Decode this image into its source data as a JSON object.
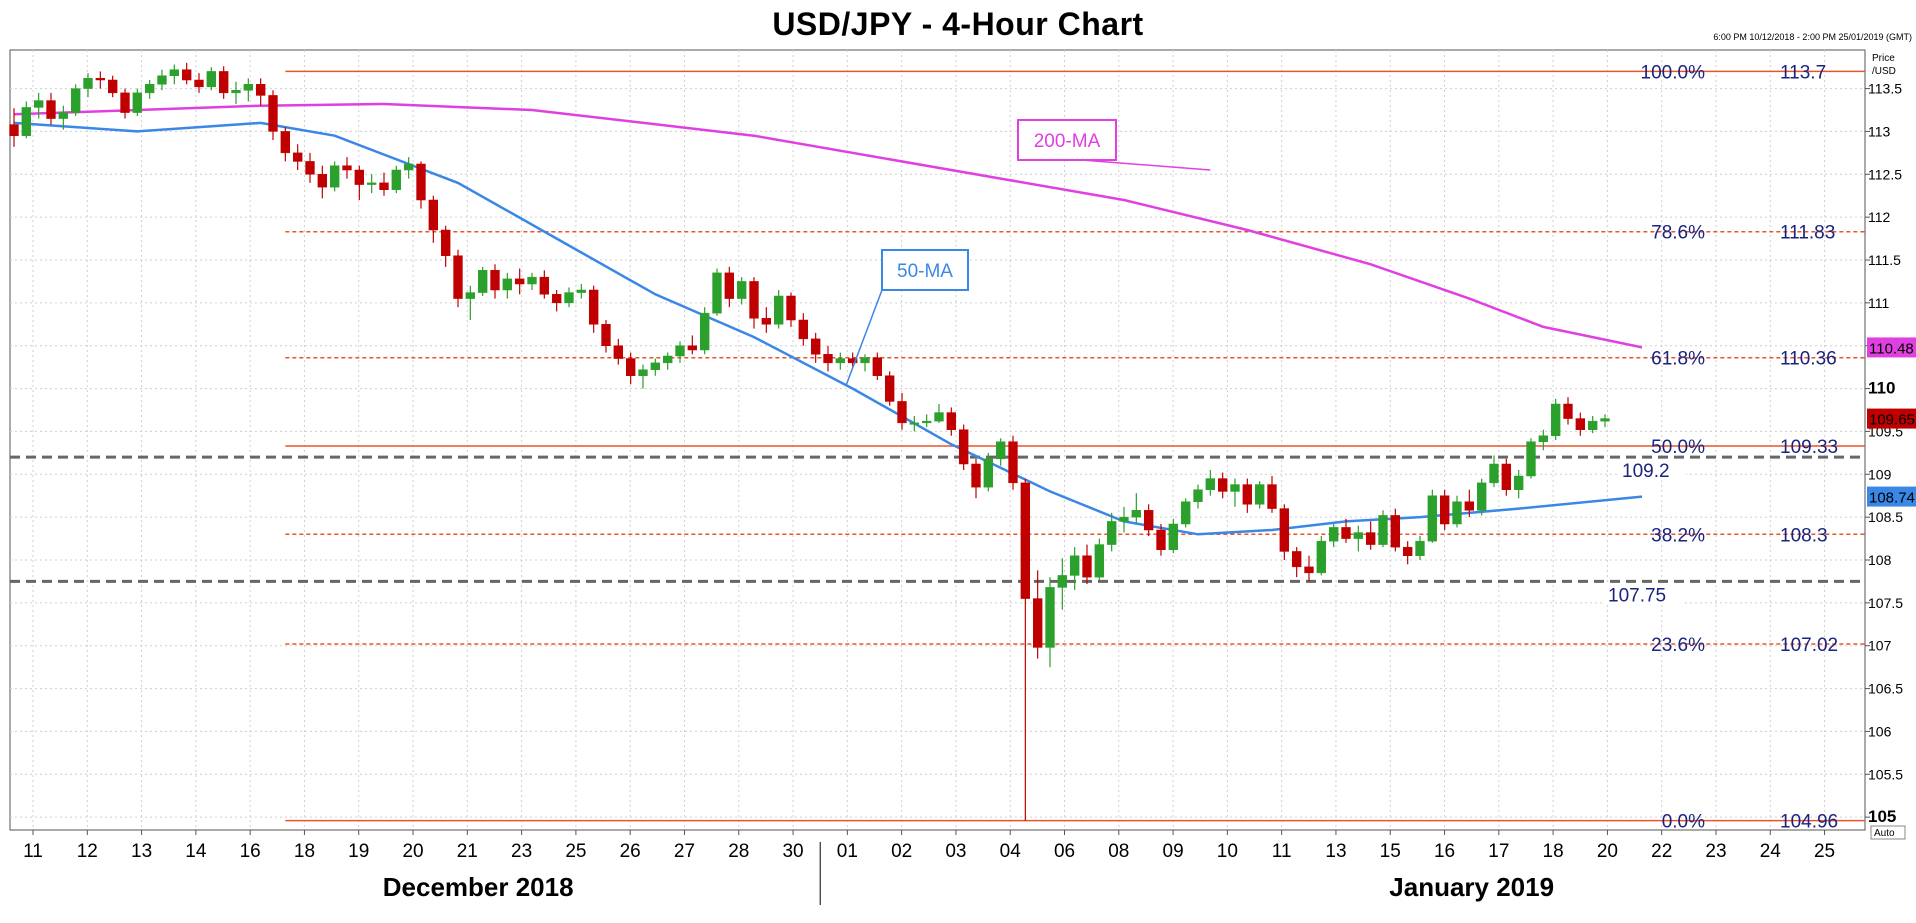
{
  "page": {
    "title": "USD/JPY - 4-Hour Chart",
    "range_note": "6:00 PM 10/12/2018 - 2:00 PM 25/01/2019 (GMT)",
    "price_axis_title": [
      "Price",
      "/USD"
    ],
    "auto_label": "Auto",
    "month_labels": [
      "December 2018",
      "January 2019"
    ]
  },
  "chart_data": {
    "type": "candlestick",
    "title": "USD/JPY - 4-Hour Chart",
    "ylim": [
      104.85,
      113.95
    ],
    "y_ticks": [
      105,
      105.5,
      106,
      106.5,
      107,
      107.5,
      108,
      108.5,
      109,
      109.5,
      110,
      110.5,
      111,
      111.5,
      112,
      112.5,
      113,
      113.5
    ],
    "y_tick_labels": [
      "105",
      "105.5",
      "106",
      "106.5",
      "107",
      "107.5",
      "108",
      "108.5",
      "109",
      "109.5",
      "110",
      "110.5",
      "111",
      "111.5",
      "112",
      "112.5",
      "113",
      "113.5"
    ],
    "y_bold_ticks": [
      "105",
      "110"
    ],
    "x_tick_labels": [
      "11",
      "12",
      "13",
      "14",
      "16",
      "18",
      "19",
      "20",
      "21",
      "23",
      "25",
      "26",
      "27",
      "28",
      "30",
      "01",
      "02",
      "03",
      "04",
      "06",
      "08",
      "09",
      "10",
      "11",
      "13",
      "15",
      "16",
      "17",
      "18",
      "20",
      "22",
      "23",
      "24",
      "25"
    ],
    "month_labels": [
      "December 2018",
      "January 2019"
    ],
    "grid": true,
    "colors": {
      "up": "#2ca02c",
      "down": "#c00000",
      "ma200": "#e040e0",
      "ma50": "#3a87e6",
      "fib": "#e8552a",
      "level": "#666666",
      "label": "#1a237e"
    },
    "fibonacci": [
      {
        "label": "100.0%",
        "value": "113.7",
        "y": 113.7
      },
      {
        "label": "78.6%",
        "value": "111.83",
        "y": 111.83
      },
      {
        "label": "61.8%",
        "value": "110.36",
        "y": 110.36
      },
      {
        "label": "50.0%",
        "value": "109.33",
        "y": 109.33
      },
      {
        "label": "38.2%",
        "value": "108.3",
        "y": 108.3
      },
      {
        "label": "23.6%",
        "value": "107.02",
        "y": 107.02
      },
      {
        "label": "0.0%",
        "value": "104.96",
        "y": 104.96
      }
    ],
    "levels": [
      {
        "label": "109.2",
        "y": 109.2
      },
      {
        "label": "107.75",
        "y": 107.75
      }
    ],
    "annotations": [
      {
        "text": "200-MA",
        "series": "ma200"
      },
      {
        "text": "50-MA",
        "series": "ma50"
      }
    ],
    "badges": [
      {
        "text": "110.48",
        "y": 110.48,
        "color": "#e040e0"
      },
      {
        "text": "109.65",
        "y": 109.65,
        "color": "#c00000"
      },
      {
        "text": "108.74",
        "y": 108.74,
        "color": "#3a87e6"
      }
    ],
    "ma200": [
      [
        0,
        113.2
      ],
      [
        20,
        113.3
      ],
      [
        30,
        113.32
      ],
      [
        42,
        113.25
      ],
      [
        60,
        112.95
      ],
      [
        80,
        112.45
      ],
      [
        90,
        112.2
      ],
      [
        100,
        111.85
      ],
      [
        110,
        111.45
      ],
      [
        118,
        111.05
      ],
      [
        124,
        110.72
      ],
      [
        132,
        110.48
      ]
    ],
    "ma50": [
      [
        0,
        113.1
      ],
      [
        10,
        113.0
      ],
      [
        20,
        113.1
      ],
      [
        26,
        112.95
      ],
      [
        36,
        112.4
      ],
      [
        44,
        111.75
      ],
      [
        52,
        111.1
      ],
      [
        60,
        110.6
      ],
      [
        68,
        110.0
      ],
      [
        76,
        109.35
      ],
      [
        84,
        108.8
      ],
      [
        90,
        108.45
      ],
      [
        96,
        108.3
      ],
      [
        102,
        108.35
      ],
      [
        108,
        108.45
      ],
      [
        114,
        108.5
      ],
      [
        122,
        108.6
      ],
      [
        132,
        108.74
      ]
    ],
    "candles": [
      [
        113.08,
        113.27,
        112.82,
        112.95
      ],
      [
        112.95,
        113.35,
        112.92,
        113.28
      ],
      [
        113.28,
        113.45,
        113.15,
        113.36
      ],
      [
        113.36,
        113.45,
        113.08,
        113.15
      ],
      [
        113.15,
        113.3,
        113.02,
        113.22
      ],
      [
        113.22,
        113.55,
        113.18,
        113.5
      ],
      [
        113.5,
        113.68,
        113.4,
        113.62
      ],
      [
        113.62,
        113.7,
        113.5,
        113.6
      ],
      [
        113.6,
        113.65,
        113.4,
        113.45
      ],
      [
        113.45,
        113.5,
        113.15,
        113.22
      ],
      [
        113.22,
        113.5,
        113.18,
        113.45
      ],
      [
        113.45,
        113.6,
        113.38,
        113.55
      ],
      [
        113.55,
        113.72,
        113.48,
        113.65
      ],
      [
        113.65,
        113.78,
        113.55,
        113.72
      ],
      [
        113.72,
        113.8,
        113.55,
        113.6
      ],
      [
        113.6,
        113.68,
        113.45,
        113.52
      ],
      [
        113.52,
        113.75,
        113.48,
        113.7
      ],
      [
        113.7,
        113.76,
        113.38,
        113.45
      ],
      [
        113.45,
        113.58,
        113.32,
        113.48
      ],
      [
        113.48,
        113.62,
        113.35,
        113.55
      ],
      [
        113.55,
        113.62,
        113.3,
        113.42
      ],
      [
        113.42,
        113.48,
        112.9,
        113.0
      ],
      [
        113.0,
        113.05,
        112.65,
        112.75
      ],
      [
        112.75,
        112.85,
        112.55,
        112.65
      ],
      [
        112.65,
        112.75,
        112.4,
        112.5
      ],
      [
        112.5,
        112.6,
        112.22,
        112.35
      ],
      [
        112.35,
        112.65,
        112.3,
        112.6
      ],
      [
        112.6,
        112.7,
        112.45,
        112.55
      ],
      [
        112.55,
        112.6,
        112.2,
        112.38
      ],
      [
        112.38,
        112.5,
        112.28,
        112.4
      ],
      [
        112.4,
        112.52,
        112.25,
        112.32
      ],
      [
        112.32,
        112.6,
        112.28,
        112.55
      ],
      [
        112.55,
        112.7,
        112.45,
        112.62
      ],
      [
        112.62,
        112.65,
        112.1,
        112.2
      ],
      [
        112.2,
        112.25,
        111.7,
        111.85
      ],
      [
        111.85,
        111.9,
        111.42,
        111.55
      ],
      [
        111.55,
        111.62,
        110.95,
        111.05
      ],
      [
        111.05,
        111.2,
        110.8,
        111.12
      ],
      [
        111.12,
        111.42,
        111.08,
        111.38
      ],
      [
        111.38,
        111.45,
        111.05,
        111.15
      ],
      [
        111.15,
        111.35,
        111.05,
        111.28
      ],
      [
        111.28,
        111.4,
        111.1,
        111.22
      ],
      [
        111.22,
        111.35,
        111.15,
        111.3
      ],
      [
        111.3,
        111.38,
        111.05,
        111.1
      ],
      [
        111.1,
        111.15,
        110.9,
        111.0
      ],
      [
        111.0,
        111.18,
        110.95,
        111.12
      ],
      [
        111.12,
        111.22,
        111.05,
        111.15
      ],
      [
        111.15,
        111.2,
        110.65,
        110.75
      ],
      [
        110.75,
        110.8,
        110.42,
        110.5
      ],
      [
        110.5,
        110.58,
        110.28,
        110.35
      ],
      [
        110.35,
        110.42,
        110.05,
        110.15
      ],
      [
        110.15,
        110.28,
        110.0,
        110.22
      ],
      [
        110.22,
        110.35,
        110.15,
        110.3
      ],
      [
        110.3,
        110.42,
        110.22,
        110.38
      ],
      [
        110.38,
        110.55,
        110.3,
        110.5
      ],
      [
        110.5,
        110.62,
        110.4,
        110.45
      ],
      [
        110.45,
        110.95,
        110.4,
        110.88
      ],
      [
        110.88,
        111.4,
        110.85,
        111.35
      ],
      [
        111.35,
        111.42,
        110.95,
        111.05
      ],
      [
        111.05,
        111.3,
        110.98,
        111.25
      ],
      [
        111.25,
        111.3,
        110.7,
        110.82
      ],
      [
        110.82,
        110.95,
        110.65,
        110.75
      ],
      [
        110.75,
        111.15,
        110.7,
        111.08
      ],
      [
        111.08,
        111.12,
        110.72,
        110.8
      ],
      [
        110.8,
        110.88,
        110.5,
        110.58
      ],
      [
        110.58,
        110.65,
        110.3,
        110.4
      ],
      [
        110.4,
        110.5,
        110.2,
        110.3
      ],
      [
        110.3,
        110.42,
        110.22,
        110.35
      ],
      [
        110.35,
        110.42,
        110.25,
        110.3
      ],
      [
        110.3,
        110.4,
        110.2,
        110.36
      ],
      [
        110.36,
        110.42,
        110.1,
        110.15
      ],
      [
        110.15,
        110.2,
        109.8,
        109.85
      ],
      [
        109.85,
        109.95,
        109.52,
        109.6
      ],
      [
        109.6,
        109.68,
        109.5,
        109.6
      ],
      [
        109.6,
        109.7,
        109.55,
        109.62
      ],
      [
        109.62,
        109.82,
        109.6,
        109.72
      ],
      [
        109.72,
        109.78,
        109.45,
        109.52
      ],
      [
        109.52,
        109.58,
        109.05,
        109.12
      ],
      [
        109.12,
        109.18,
        108.72,
        108.85
      ],
      [
        108.85,
        109.25,
        108.8,
        109.18
      ],
      [
        109.18,
        109.42,
        109.1,
        109.38
      ],
      [
        109.38,
        109.45,
        108.82,
        108.9
      ],
      [
        108.9,
        108.95,
        104.96,
        107.55
      ],
      [
        107.55,
        107.88,
        106.85,
        106.98
      ],
      [
        106.98,
        107.8,
        106.75,
        107.68
      ],
      [
        107.68,
        108.02,
        107.42,
        107.82
      ],
      [
        107.82,
        108.15,
        107.65,
        108.05
      ],
      [
        108.05,
        108.18,
        107.72,
        107.8
      ],
      [
        107.8,
        108.25,
        107.75,
        108.18
      ],
      [
        108.18,
        108.55,
        108.1,
        108.45
      ],
      [
        108.45,
        108.62,
        108.32,
        108.5
      ],
      [
        108.5,
        108.78,
        108.42,
        108.58
      ],
      [
        108.58,
        108.65,
        108.28,
        108.35
      ],
      [
        108.35,
        108.42,
        108.05,
        108.12
      ],
      [
        108.12,
        108.48,
        108.08,
        108.42
      ],
      [
        108.42,
        108.72,
        108.38,
        108.68
      ],
      [
        108.68,
        108.88,
        108.6,
        108.82
      ],
      [
        108.82,
        109.05,
        108.75,
        108.95
      ],
      [
        108.95,
        109.02,
        108.72,
        108.8
      ],
      [
        108.8,
        108.95,
        108.62,
        108.88
      ],
      [
        108.88,
        108.95,
        108.55,
        108.65
      ],
      [
        108.65,
        108.92,
        108.6,
        108.88
      ],
      [
        108.88,
        108.98,
        108.55,
        108.6
      ],
      [
        108.6,
        108.65,
        108.0,
        108.1
      ],
      [
        108.1,
        108.15,
        107.8,
        107.92
      ],
      [
        107.92,
        108.05,
        107.75,
        107.85
      ],
      [
        107.85,
        108.28,
        107.82,
        108.22
      ],
      [
        108.22,
        108.42,
        108.15,
        108.38
      ],
      [
        108.38,
        108.48,
        108.2,
        108.25
      ],
      [
        108.25,
        108.4,
        108.1,
        108.32
      ],
      [
        108.32,
        108.45,
        108.12,
        108.18
      ],
      [
        108.18,
        108.58,
        108.15,
        108.52
      ],
      [
        108.52,
        108.6,
        108.1,
        108.15
      ],
      [
        108.15,
        108.22,
        107.95,
        108.05
      ],
      [
        108.05,
        108.28,
        108.0,
        108.22
      ],
      [
        108.22,
        108.82,
        108.2,
        108.75
      ],
      [
        108.75,
        108.82,
        108.35,
        108.42
      ],
      [
        108.42,
        108.75,
        108.38,
        108.68
      ],
      [
        108.68,
        108.82,
        108.5,
        108.58
      ],
      [
        108.58,
        108.95,
        108.52,
        108.9
      ],
      [
        108.9,
        109.22,
        108.85,
        109.12
      ],
      [
        109.12,
        109.18,
        108.75,
        108.82
      ],
      [
        108.82,
        109.05,
        108.72,
        108.98
      ],
      [
        108.98,
        109.42,
        108.95,
        109.38
      ],
      [
        109.38,
        109.52,
        109.28,
        109.45
      ],
      [
        109.45,
        109.88,
        109.4,
        109.82
      ],
      [
        109.82,
        109.9,
        109.58,
        109.65
      ],
      [
        109.65,
        109.72,
        109.45,
        109.52
      ],
      [
        109.52,
        109.68,
        109.48,
        109.62
      ],
      [
        109.62,
        109.7,
        109.55,
        109.65
      ]
    ]
  }
}
